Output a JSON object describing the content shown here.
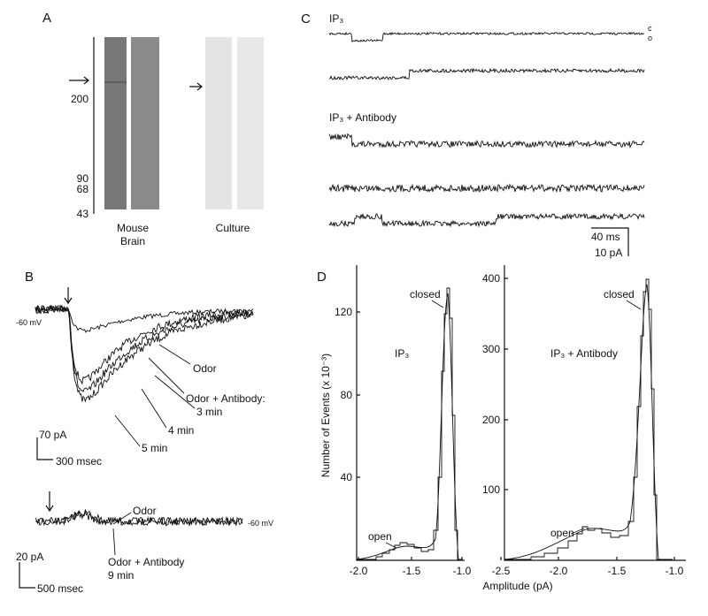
{
  "panel_a": {
    "label": "A",
    "markers": [
      "200",
      "90",
      "68",
      "43"
    ],
    "lane_labels": [
      "Mouse",
      "Brain",
      "Culture"
    ]
  },
  "panel_b": {
    "label": "B",
    "top": {
      "potential": "-60 mV",
      "labels": [
        "Odor",
        "Odor + Antibody:",
        "3 min",
        "4 min",
        "5 min"
      ],
      "scale_current": "70 pA",
      "scale_time": "300 msec"
    },
    "bottom": {
      "potential": "-60 mV",
      "labels": [
        "Odor",
        "Odor + Antibody",
        "9 min"
      ],
      "scale_current": "20 pA",
      "scale_time": "500 msec"
    }
  },
  "panel_c": {
    "label": "C",
    "condition_1": "IP₃",
    "condition_2": "IP₃ + Antibody",
    "state_closed": "c",
    "state_open": "o",
    "scale_time": "40 ms",
    "scale_current": "10 pA"
  },
  "panel_d": {
    "label": "D",
    "y_label": "Number of Events (x 10⁻³)",
    "x_label": "Amplitude (pA)",
    "left": {
      "title": "IP₃",
      "yticks": [
        "40",
        "80",
        "120"
      ],
      "xticks": [
        "-2.0",
        "-1.5",
        "-1.0"
      ],
      "closed": "closed",
      "open": "open"
    },
    "right": {
      "title": "IP₃ + Antibody",
      "yticks": [
        "100",
        "200",
        "300",
        "400"
      ],
      "xticks": [
        "-2.5",
        "-2.0",
        "-1.5",
        "-1.0"
      ],
      "closed": "closed",
      "open": "open"
    }
  }
}
